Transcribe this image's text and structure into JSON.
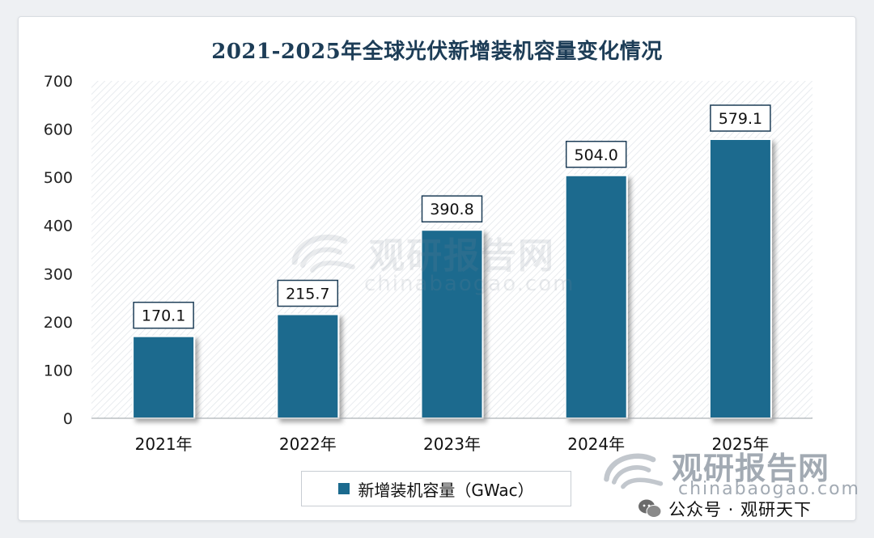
{
  "chart_data": {
    "type": "bar",
    "title": "2021-2025年全球光伏新增装机容量变化情况",
    "categories": [
      "2021年",
      "2022年",
      "2023年",
      "2024年",
      "2025年"
    ],
    "series": [
      {
        "name": "新增装机容量（GWac）",
        "values": [
          170.1,
          215.7,
          390.8,
          504.0,
          579.1
        ]
      }
    ],
    "data_labels": [
      "170.1",
      "215.7",
      "390.8",
      "504.0",
      "579.1"
    ],
    "ylim": [
      0,
      700
    ],
    "yticks": [
      0,
      100,
      200,
      300,
      400,
      500,
      600,
      700
    ],
    "grid": false,
    "legend_position": "bottom",
    "bar_color": "#1b6a8e",
    "plot_background": "diagonal-hatch"
  },
  "legend": {
    "label": "新增装机容量（GWac）",
    "color": "#1b6a8e"
  },
  "watermark": {
    "name": "观研报告网",
    "url": "chinabaogao.com",
    "wechat": "公众号 · 观研天下"
  }
}
